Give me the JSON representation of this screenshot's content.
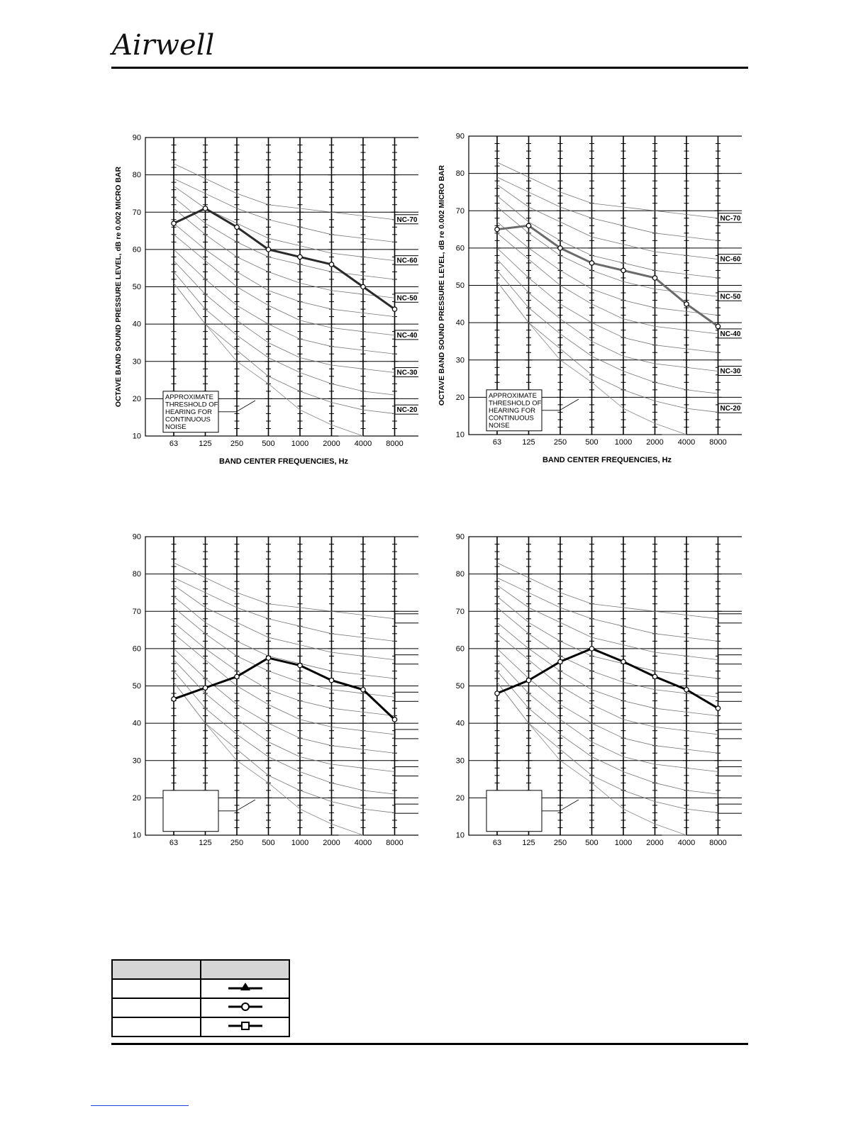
{
  "brand": {
    "logo_text": "Airwell"
  },
  "charts": [
    {
      "panel": "top-left",
      "show_axis_titles": true,
      "show_nc_labels": true,
      "show_threshold_text": true,
      "line_color": "#2a2a2a",
      "marker": "circle",
      "chart_data": {
        "type": "line",
        "categories": [
          "63",
          "125",
          "250",
          "500",
          "1000",
          "2000",
          "4000",
          "8000"
        ],
        "xlabel": "BAND CENTER FREQUENCIES, Hz",
        "ylabel": "OCTAVE BAND SOUND PRESSURE LEVEL, dB re 0.002 MICRO BAR",
        "ylim": [
          10,
          90
        ],
        "yticks": [
          10,
          20,
          30,
          40,
          50,
          60,
          70,
          80,
          90
        ],
        "nc_labels": [
          "NC-70",
          "NC-60",
          "NC-50",
          "NC-40",
          "NC-30",
          "NC-20"
        ],
        "threshold_text": [
          "APPROXIMATE",
          "THRESHOLD OF",
          "HEARING FOR",
          "CONTINUOUS",
          "NOISE"
        ],
        "series": [
          {
            "values": [
              67,
              71,
              66,
              60,
              58,
              56,
              50,
              44
            ]
          }
        ]
      }
    },
    {
      "panel": "top-right",
      "show_axis_titles": true,
      "show_nc_labels": true,
      "show_threshold_text": true,
      "line_color": "#6a6a6a",
      "marker": "circle",
      "chart_data": {
        "type": "line",
        "categories": [
          "63",
          "125",
          "250",
          "500",
          "1000",
          "2000",
          "4000",
          "8000"
        ],
        "xlabel": "BAND CENTER FREQUENCIES, Hz",
        "ylabel": "OCTAVE BAND SOUND PRESSURE LEVEL, dB re 0.002 MICRO BAR",
        "ylim": [
          10,
          90
        ],
        "yticks": [
          10,
          20,
          30,
          40,
          50,
          60,
          70,
          80,
          90
        ],
        "nc_labels": [
          "NC-70",
          "NC-60",
          "NC-50",
          "NC-40",
          "NC-30",
          "NC-20"
        ],
        "threshold_text": [
          "APPROXIMATE",
          "THRESHOLD OF",
          "HEARING FOR",
          "CONTINUOUS",
          "NOISE"
        ],
        "series": [
          {
            "values": [
              65,
              66,
              60,
              56,
              54,
              52,
              45,
              39
            ]
          }
        ]
      }
    },
    {
      "panel": "bottom-left",
      "show_axis_titles": false,
      "show_nc_labels": false,
      "show_threshold_text": false,
      "line_color": "#000000",
      "marker": "circle",
      "chart_data": {
        "type": "line",
        "categories": [
          "63",
          "125",
          "250",
          "500",
          "1000",
          "2000",
          "4000",
          "8000"
        ],
        "ylim": [
          10,
          90
        ],
        "yticks": [
          10,
          20,
          30,
          40,
          50,
          60,
          70,
          80,
          90
        ],
        "series": [
          {
            "values": [
              46.5,
              49.5,
              52.5,
              57.5,
              55.5,
              51.5,
              49,
              41
            ]
          }
        ]
      }
    },
    {
      "panel": "bottom-right",
      "show_axis_titles": false,
      "show_nc_labels": false,
      "show_threshold_text": false,
      "line_color": "#000000",
      "marker": "circle",
      "chart_data": {
        "type": "line",
        "categories": [
          "63",
          "125",
          "250",
          "500",
          "1000",
          "2000",
          "4000",
          "8000"
        ],
        "ylim": [
          10,
          90
        ],
        "yticks": [
          10,
          20,
          30,
          40,
          50,
          60,
          70,
          80,
          90
        ],
        "series": [
          {
            "values": [
              48,
              51.5,
              56.5,
              60,
              56.5,
              52.5,
              49,
              44
            ]
          }
        ]
      }
    }
  ],
  "legend": {
    "header": [
      "",
      ""
    ],
    "rows": [
      {
        "label": "",
        "marker": "triangle"
      },
      {
        "label": "",
        "marker": "circle"
      },
      {
        "label": "",
        "marker": "square"
      }
    ]
  }
}
